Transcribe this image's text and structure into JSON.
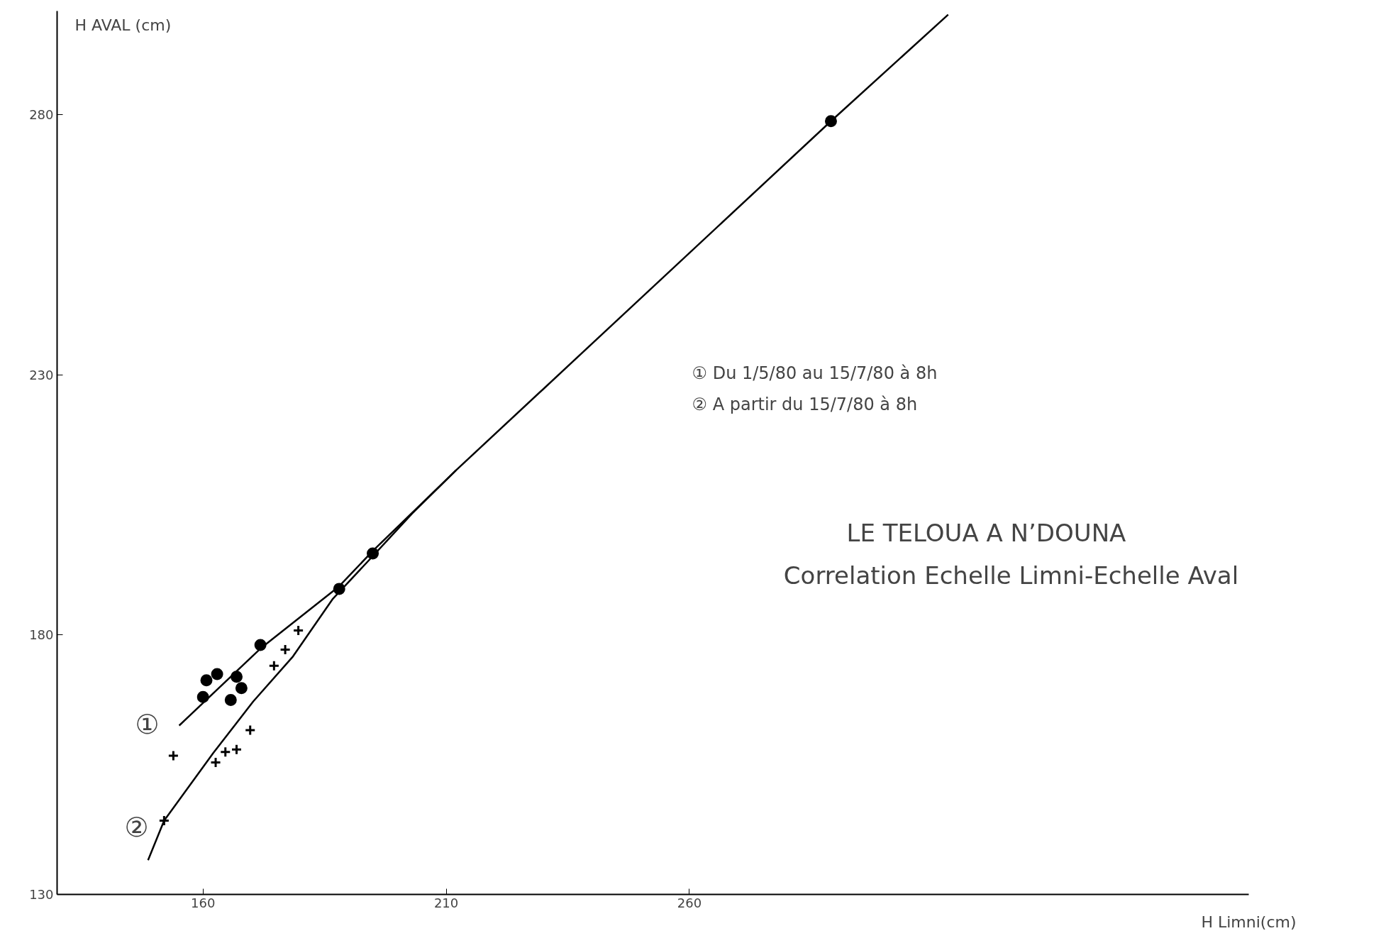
{
  "chart_data": {
    "type": "scatter",
    "title": "LE TELOUA A N’DOUNA",
    "subtitle": "Correlation Echelle Limni-Echelle Aval",
    "xlabel": "H Limni(cm)",
    "ylabel": "H AVAL (cm)",
    "xlim": [
      130,
      375
    ],
    "ylim": [
      130,
      300
    ],
    "xticks": [
      160,
      210,
      260
    ],
    "yticks": [
      130,
      180,
      230,
      280
    ],
    "grid": false,
    "series": [
      {
        "marker": "circle",
        "color": "#000000",
        "x": [
          160,
          160.7,
          162.9,
          166.9,
          167.9,
          165.7,
          171.8,
          188.0,
          194.9,
          289.1
        ],
        "values": [
          168,
          171.2,
          172.4,
          171.9,
          169.7,
          167.4,
          178.0,
          188.8,
          195.6,
          278.8
        ]
      },
      {
        "marker": "cross",
        "color": "#000000",
        "x": [
          153.9,
          152.0,
          162.6,
          164.6,
          166.9,
          169.7,
          174.6,
          176.9,
          179.6
        ],
        "values": [
          156.7,
          144.2,
          155.4,
          157.4,
          157.9,
          161.6,
          174.0,
          177.1,
          180.8
        ]
      },
      {
        "type": "line",
        "marker": "none",
        "color": "#000000",
        "x": [
          155.1,
          171.8,
          188.0,
          194.9,
          212.0,
          289.1,
          313.2
        ],
        "values": [
          162.5,
          177.3,
          189.3,
          196.1,
          211.6,
          278.8,
          299.3
        ]
      },
      {
        "type": "line",
        "marker": "none",
        "color": "#000000",
        "x": [
          148.7,
          152.0,
          162.1,
          170.3,
          178.5,
          186.7,
          194.9,
          203.0,
          212.0
        ],
        "values": [
          136.6,
          144.2,
          157.2,
          167.1,
          175.8,
          186.9,
          195.1,
          203.3,
          211.6
        ]
      }
    ],
    "annotations": [
      "①",
      "②",
      "① Du 1/5/80 au 15/7/80 à 8h",
      "② A partir du 15/7/80 à 8h"
    ]
  }
}
